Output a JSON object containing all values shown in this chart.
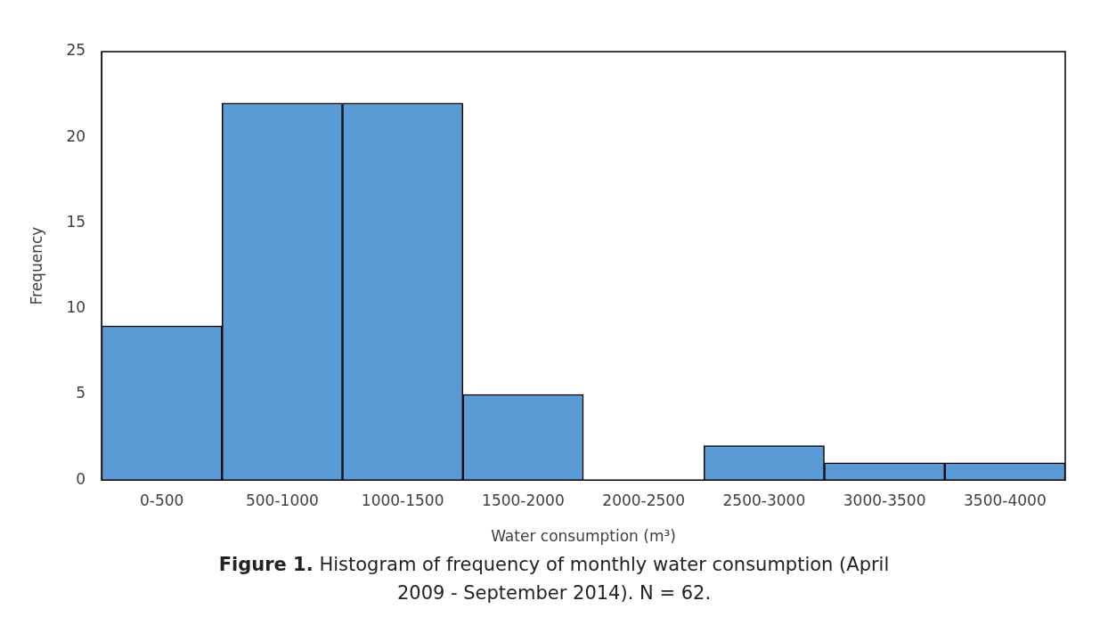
{
  "chart_data": {
    "type": "bar",
    "title": "Figure 1. Histogram of frequency of monthly water consumption (April 2009 - September 2014). N = 62.",
    "xlabel": "Water consumption (m³)",
    "ylabel": "Frequency",
    "categories": [
      "0-500",
      "500-1000",
      "1000-1500",
      "1500-2000",
      "2000-2500",
      "2500-3000",
      "3000-3500",
      "3500-4000"
    ],
    "values": [
      9,
      22,
      22,
      5,
      0,
      2,
      1,
      1
    ],
    "color": "#5b9bd5",
    "ylim": [
      0,
      25
    ],
    "yticks": [
      0,
      5,
      10,
      15,
      20,
      25
    ],
    "grid": false,
    "legend": false
  }
}
